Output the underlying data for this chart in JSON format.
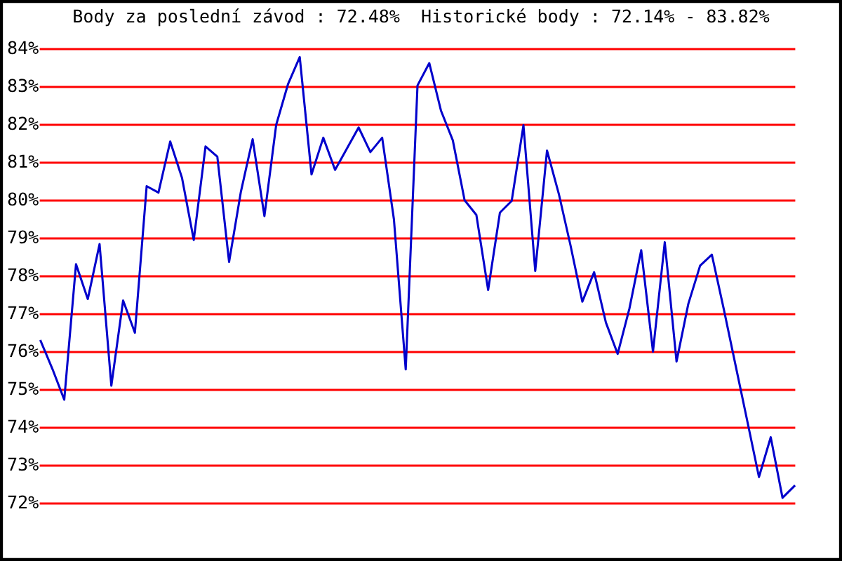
{
  "chart_data": {
    "type": "line",
    "title": "Body za poslední závod : 72.48%  Historické body : 72.14% - 83.82%",
    "categories": [
      null,
      null,
      null,
      null,
      null,
      null,
      null,
      null,
      null,
      null,
      null,
      null,
      null,
      null,
      null,
      null,
      null,
      null,
      null,
      null,
      null,
      null,
      null,
      null,
      null,
      null,
      null,
      null,
      null,
      null,
      null,
      null,
      null,
      null,
      null,
      null,
      null,
      null,
      null,
      null,
      null,
      null,
      null,
      null,
      null,
      null,
      null,
      null,
      null,
      null,
      null,
      null,
      null,
      null,
      null,
      null,
      null,
      null,
      null,
      null,
      null,
      null,
      null,
      null,
      null
    ],
    "series": [
      {
        "color": "#0000cc",
        "values": [
          76.29,
          75.55,
          74.74,
          78.32,
          77.4,
          78.85,
          75.11,
          77.36,
          76.51,
          80.38,
          80.21,
          81.56,
          80.6,
          78.96,
          81.43,
          81.16,
          78.38,
          80.23,
          81.62,
          79.59,
          82.0,
          83.07,
          83.79,
          80.69,
          81.66,
          80.81,
          81.37,
          81.93,
          81.28,
          81.66,
          79.5,
          75.54,
          83.04,
          83.63,
          82.37,
          81.59,
          80.01,
          79.62,
          77.64,
          79.68,
          79.99,
          81.99,
          78.14,
          81.32,
          80.18,
          78.81,
          77.33,
          78.11,
          76.78,
          75.95,
          77.15,
          78.69,
          76.01,
          78.9,
          75.75,
          77.27,
          78.28,
          78.57,
          77.15,
          75.67,
          74.19,
          72.7,
          73.75,
          72.15,
          72.46
        ]
      }
    ],
    "ylim": [
      72,
      84
    ],
    "yticks": [
      {
        "value": 72,
        "label": "72%"
      },
      {
        "value": 73,
        "label": "73%"
      },
      {
        "value": 74,
        "label": "74%"
      },
      {
        "value": 75,
        "label": "75%"
      },
      {
        "value": 76,
        "label": "76%"
      },
      {
        "value": 77,
        "label": "77%"
      },
      {
        "value": 78,
        "label": "78%"
      },
      {
        "value": 79,
        "label": "79%"
      },
      {
        "value": 80,
        "label": "80%"
      },
      {
        "value": 81,
        "label": "81%"
      },
      {
        "value": 82,
        "label": "82%"
      },
      {
        "value": 83,
        "label": "83%"
      },
      {
        "value": 84,
        "label": "84%"
      }
    ],
    "grid": "y",
    "tick_labels": "y",
    "marker": "none",
    "line_style": "solid",
    "legend": false
  }
}
